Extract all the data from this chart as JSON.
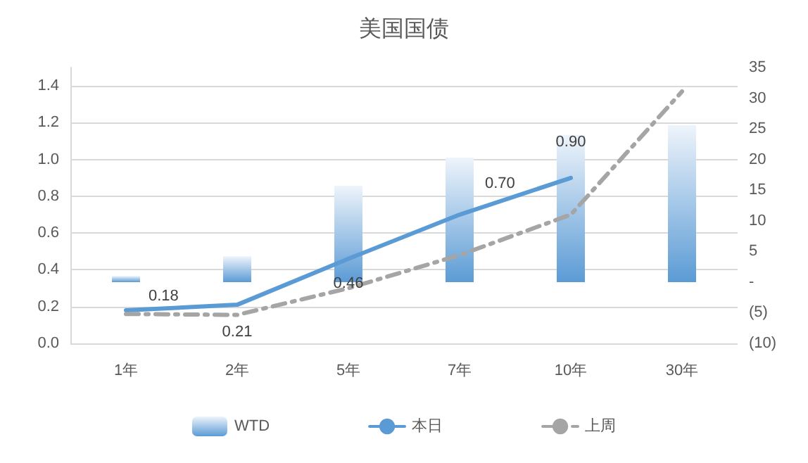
{
  "chart_data": {
    "type": "bar",
    "title": "美国国债",
    "categories": [
      "1年",
      "2年",
      "5年",
      "7年",
      "10年",
      "30年"
    ],
    "series": [
      {
        "name": "WTD",
        "axis": "y2",
        "color": "#5b9bd5",
        "values": [
          1,
          4.2,
          15.7,
          20.3,
          24,
          25.6
        ]
      },
      {
        "name": "本日",
        "type": "line",
        "color": "#5b9bd5",
        "line_style": "solid",
        "values": [
          0.18,
          0.21,
          0.46,
          0.7,
          0.9,
          null
        ],
        "value_labels": [
          "0.18",
          "0.21",
          "0.46",
          "0.70",
          "0.90",
          null
        ]
      },
      {
        "name": "上周",
        "type": "line",
        "color": "#a5a5a5",
        "line_style": "dashdot",
        "values": [
          0.16,
          0.155,
          0.3,
          0.48,
          0.7,
          1.37
        ]
      }
    ],
    "ylim": [
      0,
      1.5
    ],
    "yticks": [
      {
        "value": 0,
        "label": "0.0"
      },
      0.2,
      0.4,
      0.6,
      0.8,
      {
        "value": 1,
        "label": "1.0"
      },
      1.2,
      1.4
    ],
    "y2lim": [
      -10,
      35
    ],
    "y2ticks": [
      {
        "value": -10,
        "label": "(10)"
      },
      {
        "value": -5,
        "label": "(5)"
      },
      {
        "value": 0,
        "label": "-"
      },
      5,
      10,
      15,
      20,
      25,
      30,
      35
    ],
    "grid": "y",
    "legend": "bottom",
    "marker": "none"
  }
}
